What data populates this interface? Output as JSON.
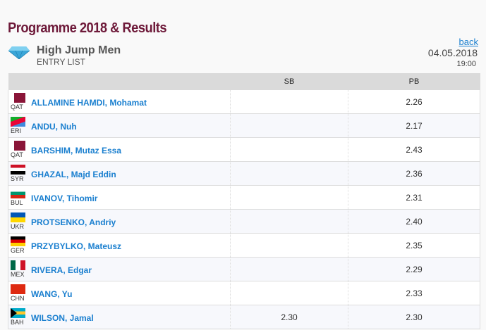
{
  "header": {
    "title": "Programme 2018 & Results",
    "event": "High Jump Men",
    "subtitle": "ENTRY LIST",
    "back_label": "back",
    "date": "04.05.2018",
    "time": "19:00",
    "icon": "diamond-icon"
  },
  "table": {
    "columns": [
      "",
      "SB",
      "PB"
    ],
    "rows": [
      {
        "country": "QAT",
        "name": "ALLAMINE HAMDI, Mohamat",
        "sb": "",
        "pb": "2.26"
      },
      {
        "country": "ERI",
        "name": "ANDU, Nuh",
        "sb": "",
        "pb": "2.17"
      },
      {
        "country": "QAT",
        "name": "BARSHIM, Mutaz Essa",
        "sb": "",
        "pb": "2.43"
      },
      {
        "country": "SYR",
        "name": "GHAZAL, Majd Eddin",
        "sb": "",
        "pb": "2.36"
      },
      {
        "country": "BUL",
        "name": "IVANOV, Tihomir",
        "sb": "",
        "pb": "2.31"
      },
      {
        "country": "UKR",
        "name": "PROTSENKO, Andriy",
        "sb": "",
        "pb": "2.40"
      },
      {
        "country": "GER",
        "name": "PRZYBYLKO, Mateusz",
        "sb": "",
        "pb": "2.35"
      },
      {
        "country": "MEX",
        "name": "RIVERA, Edgar",
        "sb": "",
        "pb": "2.29"
      },
      {
        "country": "CHN",
        "name": "WANG, Yu",
        "sb": "",
        "pb": "2.33"
      },
      {
        "country": "BAH",
        "name": "WILSON, Jamal",
        "sb": "2.30",
        "pb": "2.30"
      }
    ]
  },
  "colors": {
    "title": "#6e1a3a",
    "link": "#1a7fcf"
  }
}
